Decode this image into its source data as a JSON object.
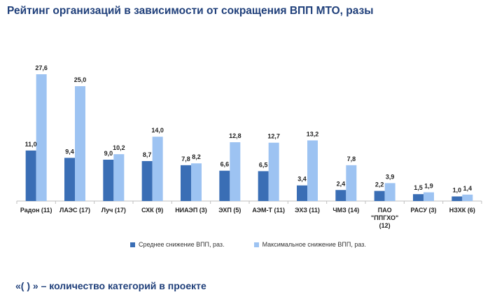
{
  "colors": {
    "title": "#1F3F7A",
    "avg": "#3A6EB5",
    "max": "#9DC3F2",
    "axis": "#BFBFBF"
  },
  "title": "Рейтинг организаций в зависимости от сокращения ВПП МТО, разы",
  "footnote": "«( ) » – количество категорий в проекте",
  "legend": {
    "avg": "Среднее  снижение ВПП, раз.",
    "max": "Максимальное снижение ВПП, раз."
  },
  "chart_data": {
    "type": "bar",
    "categories": [
      [
        "Радон (11)"
      ],
      [
        "ЛАЭС (17)"
      ],
      [
        "Луч (17)"
      ],
      [
        "СХК (9)"
      ],
      [
        "НИАЭП (3)"
      ],
      [
        "ЭХП (5)"
      ],
      [
        "АЭМ-Т (11)"
      ],
      [
        "ЭХЗ (11)"
      ],
      [
        "ЧМЗ (14)"
      ],
      [
        "ПАО",
        "\"ППГХО\"",
        "(12)"
      ],
      [
        "РАСУ (3)"
      ],
      [
        "НЗХК (6)"
      ]
    ],
    "series": [
      {
        "name": "Среднее  снижение ВПП, раз.",
        "values": [
          11.0,
          9.4,
          9.0,
          8.7,
          7.8,
          6.6,
          6.5,
          3.4,
          2.4,
          2.2,
          1.5,
          1.0
        ],
        "labels": [
          "11,0",
          "9,4",
          "9,0",
          "8,7",
          "7,8",
          "6,6",
          "6,5",
          "3,4",
          "2,4",
          "2,2",
          "1,5",
          "1,0"
        ]
      },
      {
        "name": "Максимальное снижение ВПП, раз.",
        "values": [
          27.6,
          25.0,
          10.2,
          14.0,
          8.2,
          12.8,
          12.7,
          13.2,
          7.8,
          3.9,
          1.9,
          1.4
        ],
        "labels": [
          "27,6",
          "25,0",
          "10,2",
          "14,0",
          "8,2",
          "12,8",
          "12,7",
          "13,2",
          "7,8",
          "3,9",
          "1,9",
          "1,4"
        ]
      }
    ],
    "ylim": [
      0,
      27.6
    ],
    "grid": false,
    "legend_position": "bottom"
  }
}
